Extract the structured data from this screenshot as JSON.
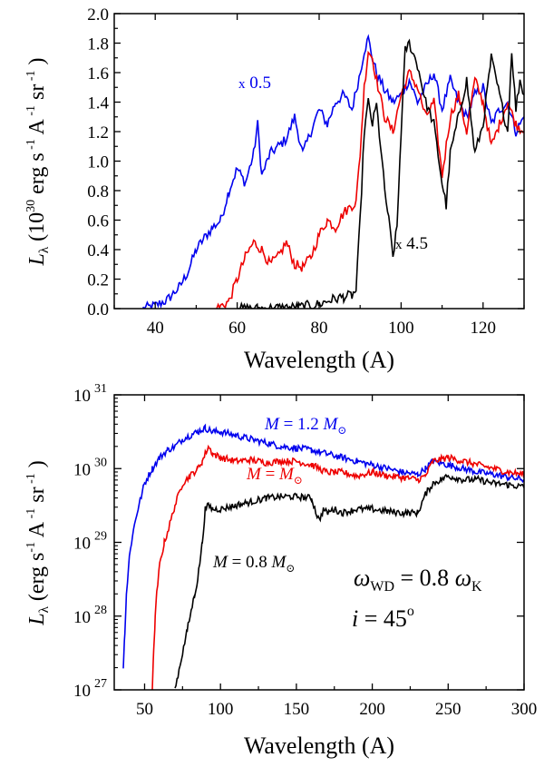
{
  "chart_data": [
    {
      "type": "line",
      "panel": "top",
      "xlabel": "Wavelength  (A)",
      "ylabel": {
        "sym": "L",
        "sub": "λ",
        "text": "(10",
        "exp": "30",
        "units": "erg s",
        "m1": "-1",
        "A": "A",
        "m2": "-1",
        "sr": "sr",
        "m3": "-1",
        "close": ")"
      },
      "xlim": [
        30,
        130
      ],
      "ylim": [
        0.0,
        2.0
      ],
      "xticks": [
        "40",
        "60",
        "80",
        "100",
        "120"
      ],
      "xtick_values": [
        40,
        60,
        80,
        100,
        120
      ],
      "yticks": [
        "0.0",
        "0.2",
        "0.4",
        "0.6",
        "0.8",
        "1.0",
        "1.2",
        "1.4",
        "1.6",
        "1.8",
        "2.0"
      ],
      "ytick_values": [
        0.0,
        0.2,
        0.4,
        0.6,
        0.8,
        1.0,
        1.2,
        1.4,
        1.6,
        1.8,
        2.0
      ],
      "annotations": [
        {
          "text": "x 0.5",
          "color": "#0000ee"
        },
        {
          "text": "x 4.5",
          "color": "#000000"
        }
      ],
      "series": [
        {
          "name": "blue",
          "color": "#0000ee",
          "x": [
            37,
            40,
            43,
            46,
            48,
            50,
            52,
            54,
            56,
            58,
            60,
            62,
            64,
            65,
            66,
            68,
            70,
            72,
            74,
            76,
            78,
            80,
            82,
            84,
            86,
            88,
            90,
            91,
            92,
            93,
            94,
            96,
            98,
            100,
            102,
            104,
            106,
            108,
            110,
            112,
            114,
            116,
            118,
            120,
            122,
            124,
            126,
            128,
            130
          ],
          "y": [
            0.0,
            0.02,
            0.06,
            0.15,
            0.25,
            0.4,
            0.48,
            0.55,
            0.6,
            0.8,
            0.95,
            0.85,
            1.05,
            1.25,
            0.9,
            1.05,
            1.1,
            1.15,
            1.3,
            1.05,
            1.2,
            1.35,
            1.25,
            1.4,
            1.45,
            1.35,
            1.6,
            1.75,
            1.83,
            1.7,
            1.6,
            1.48,
            1.4,
            1.45,
            1.55,
            1.4,
            1.5,
            1.6,
            1.35,
            1.55,
            1.4,
            1.3,
            1.45,
            1.5,
            1.25,
            1.35,
            1.4,
            1.2,
            1.3
          ]
        },
        {
          "name": "red",
          "color": "#ee0000",
          "x": [
            55,
            58,
            60,
            62,
            64,
            66,
            68,
            70,
            72,
            74,
            76,
            78,
            80,
            82,
            84,
            86,
            88,
            89,
            90,
            91,
            92,
            93,
            94,
            96,
            98,
            100,
            102,
            104,
            106,
            108,
            110,
            112,
            114,
            116,
            118,
            120,
            122,
            124,
            126,
            128,
            130
          ],
          "y": [
            0.0,
            0.05,
            0.2,
            0.35,
            0.45,
            0.4,
            0.3,
            0.35,
            0.45,
            0.3,
            0.28,
            0.35,
            0.5,
            0.6,
            0.55,
            0.65,
            0.7,
            0.72,
            1.05,
            1.5,
            1.75,
            1.7,
            1.55,
            1.3,
            1.2,
            1.45,
            1.6,
            1.5,
            1.3,
            1.4,
            0.9,
            1.3,
            1.45,
            1.2,
            1.55,
            1.4,
            1.1,
            1.25,
            1.4,
            1.25,
            1.2
          ]
        },
        {
          "name": "black",
          "color": "#000000",
          "x": [
            60,
            65,
            70,
            75,
            80,
            83,
            86,
            88,
            89,
            90,
            91,
            92,
            93,
            94,
            95,
            96,
            97,
            98,
            99,
            100,
            101,
            102,
            104,
            106,
            108,
            110,
            111,
            112,
            114,
            116,
            118,
            120,
            122,
            124,
            126,
            127,
            128,
            129,
            130
          ],
          "y": [
            0.0,
            0.0,
            0.005,
            0.01,
            0.03,
            0.06,
            0.08,
            0.09,
            0.12,
            0.6,
            1.2,
            1.4,
            1.25,
            1.38,
            1.1,
            0.8,
            0.6,
            0.35,
            0.55,
            1.2,
            1.75,
            1.8,
            1.65,
            1.4,
            1.25,
            0.85,
            0.7,
            1.05,
            1.3,
            1.55,
            1.05,
            1.25,
            1.7,
            1.45,
            1.2,
            1.75,
            1.35,
            1.55,
            1.45
          ]
        }
      ]
    },
    {
      "type": "line",
      "panel": "bottom",
      "yscale": "log",
      "xlabel": "Wavelength  (A)",
      "ylabel": {
        "sym": "L",
        "sub": "λ",
        "text": "(erg s",
        "m1": "-1",
        "A": "A",
        "m2": "-1",
        "sr": "sr",
        "m3": "-1",
        "close": ")"
      },
      "xlim": [
        30,
        300
      ],
      "ylim_log10": [
        27,
        31
      ],
      "xticks": [
        "50",
        "100",
        "150",
        "200",
        "250",
        "300"
      ],
      "xtick_values": [
        50,
        100,
        150,
        200,
        250,
        300
      ],
      "yticks": [
        {
          "base": "10",
          "exp": "27"
        },
        {
          "base": "10",
          "exp": "28"
        },
        {
          "base": "10",
          "exp": "29"
        },
        {
          "base": "10",
          "exp": "30"
        },
        {
          "base": "10",
          "exp": "31"
        }
      ],
      "ytick_values": [
        27,
        28,
        29,
        30,
        31
      ],
      "annotations": [
        {
          "pre": "M",
          "mid": " = 1.2 ",
          "sym": "M",
          "sub": "⊙",
          "color": "#0000ee"
        },
        {
          "pre": "M",
          "mid": " = ",
          "sym": "M",
          "sub": "⊙",
          "color": "#ee0000"
        },
        {
          "pre": "M",
          "mid": " = 0.8 ",
          "sym": "M",
          "sub": "⊙",
          "color": "#000000"
        }
      ],
      "params": [
        {
          "sym": "ω",
          "sub": "WD",
          "mid": " = 0.8 ",
          "sym2": "ω",
          "sub2": "K"
        },
        {
          "sym": "i",
          "mid": " = 45",
          "sup": "o"
        }
      ],
      "series": [
        {
          "name": "M = 1.2 Msun",
          "color": "#0000ee",
          "log10_y": true,
          "x": [
            36,
            37,
            38,
            40,
            42,
            45,
            50,
            55,
            60,
            65,
            70,
            75,
            80,
            85,
            90,
            95,
            100,
            110,
            120,
            130,
            140,
            150,
            160,
            170,
            180,
            190,
            200,
            210,
            220,
            230,
            235,
            240,
            250,
            260,
            270,
            280,
            290,
            300
          ],
          "y": [
            27.3,
            27.8,
            28.3,
            28.8,
            29.1,
            29.4,
            29.8,
            30.0,
            30.15,
            30.25,
            30.3,
            30.4,
            30.45,
            30.5,
            30.55,
            30.5,
            30.5,
            30.45,
            30.4,
            30.35,
            30.3,
            30.28,
            30.25,
            30.2,
            30.15,
            30.1,
            30.05,
            30.0,
            29.95,
            29.92,
            30.0,
            30.1,
            30.05,
            30.0,
            29.95,
            29.92,
            29.88,
            29.85
          ]
        },
        {
          "name": "M = Msun",
          "color": "#ee0000",
          "log10_y": true,
          "x": [
            55,
            56,
            57,
            58,
            60,
            63,
            66,
            70,
            75,
            80,
            85,
            88,
            90,
            92,
            95,
            100,
            110,
            120,
            130,
            140,
            150,
            160,
            170,
            180,
            190,
            200,
            210,
            220,
            230,
            235,
            240,
            250,
            260,
            270,
            280,
            290,
            300
          ],
          "y": [
            27.0,
            27.5,
            28.0,
            28.3,
            28.7,
            29.0,
            29.2,
            29.5,
            29.8,
            29.9,
            30.0,
            30.1,
            30.2,
            30.3,
            30.2,
            30.15,
            30.1,
            30.12,
            30.08,
            30.1,
            30.1,
            30.05,
            29.95,
            29.95,
            29.9,
            29.95,
            29.9,
            29.88,
            29.85,
            29.9,
            30.1,
            30.15,
            30.1,
            30.05,
            30.0,
            29.95,
            29.92
          ]
        },
        {
          "name": "M = 0.8 Msun",
          "color": "#000000",
          "log10_y": true,
          "x": [
            70,
            72,
            75,
            78,
            80,
            83,
            85,
            88,
            90,
            92,
            95,
            100,
            110,
            120,
            130,
            140,
            150,
            160,
            163,
            165,
            168,
            170,
            175,
            180,
            190,
            200,
            210,
            220,
            230,
            235,
            240,
            245,
            250,
            260,
            270,
            280,
            290,
            300
          ],
          "y": [
            27.0,
            27.2,
            27.5,
            27.8,
            28.0,
            28.3,
            28.5,
            29.0,
            29.45,
            29.5,
            29.45,
            29.45,
            29.5,
            29.55,
            29.6,
            29.62,
            29.62,
            29.6,
            29.4,
            29.3,
            29.45,
            29.4,
            29.45,
            29.4,
            29.45,
            29.45,
            29.42,
            29.4,
            29.4,
            29.65,
            29.8,
            29.85,
            29.9,
            29.85,
            29.85,
            29.8,
            29.78,
            29.75
          ]
        }
      ]
    }
  ]
}
